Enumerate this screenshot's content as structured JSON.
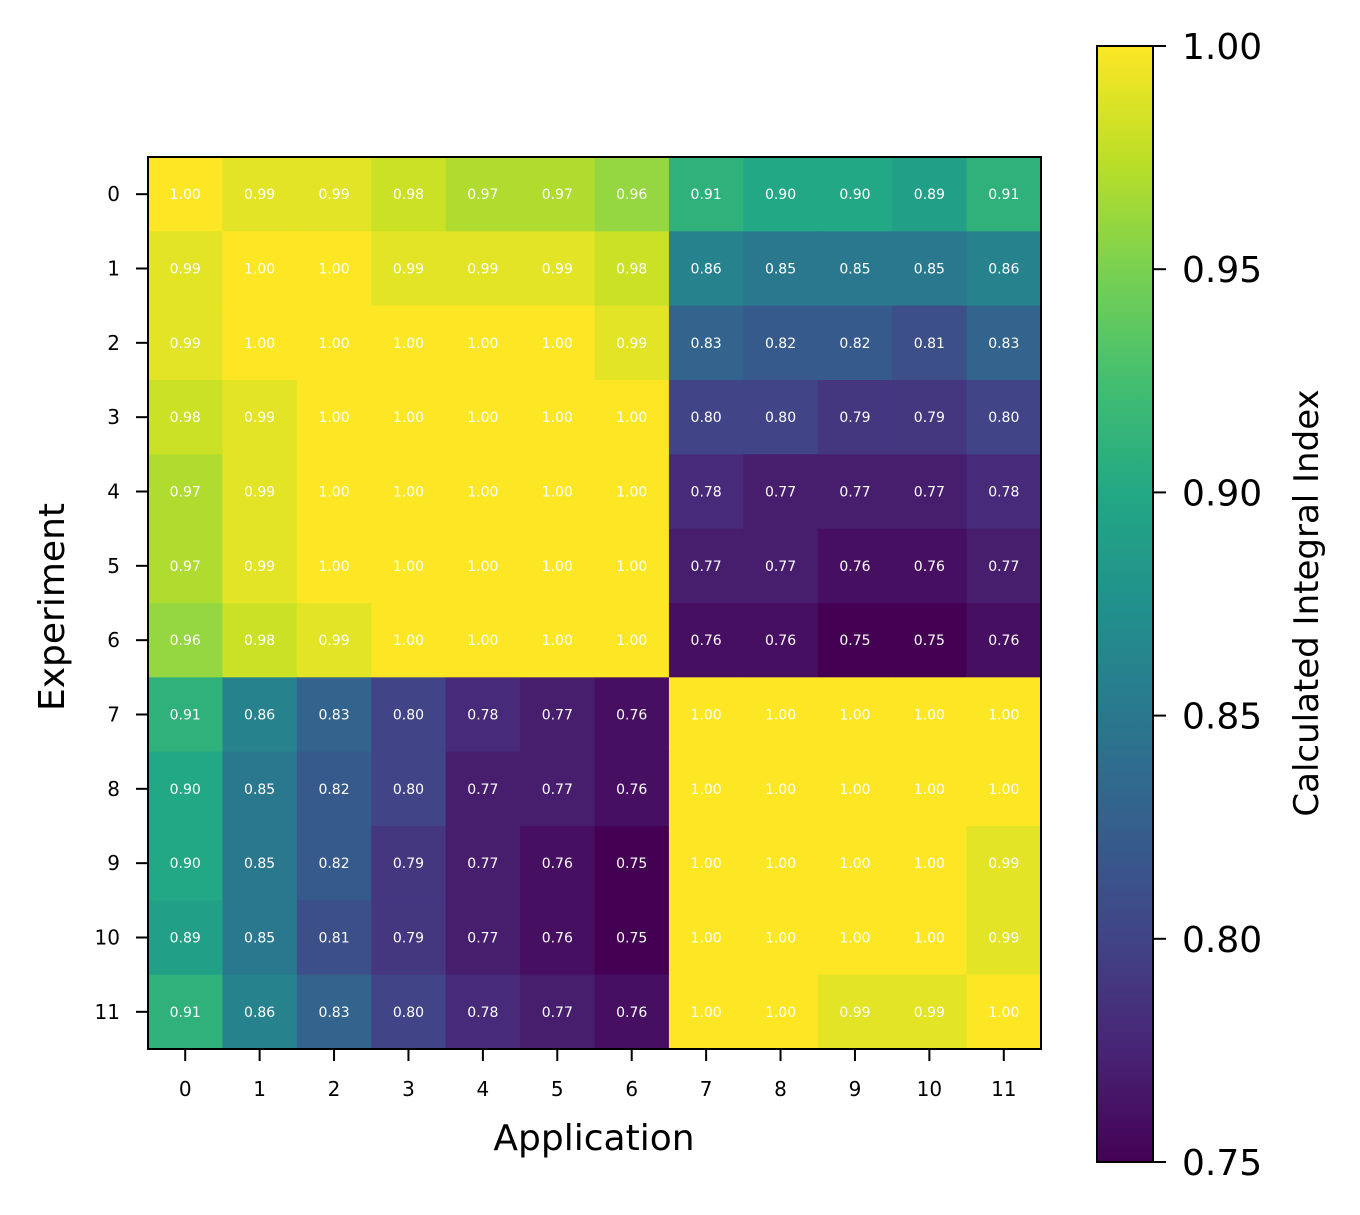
{
  "chart_data": {
    "type": "heatmap",
    "title": "",
    "xlabel": "Application",
    "ylabel": "Experiment",
    "x_categories": [
      "0",
      "1",
      "2",
      "3",
      "4",
      "5",
      "6",
      "7",
      "8",
      "9",
      "10",
      "11"
    ],
    "y_categories": [
      "0",
      "1",
      "2",
      "3",
      "4",
      "5",
      "6",
      "7",
      "8",
      "9",
      "10",
      "11"
    ],
    "values": [
      [
        1.0,
        0.99,
        0.99,
        0.98,
        0.97,
        0.97,
        0.96,
        0.91,
        0.9,
        0.9,
        0.89,
        0.91
      ],
      [
        0.99,
        1.0,
        1.0,
        0.99,
        0.99,
        0.99,
        0.98,
        0.86,
        0.85,
        0.85,
        0.85,
        0.86
      ],
      [
        0.99,
        1.0,
        1.0,
        1.0,
        1.0,
        1.0,
        0.99,
        0.83,
        0.82,
        0.82,
        0.81,
        0.83
      ],
      [
        0.98,
        0.99,
        1.0,
        1.0,
        1.0,
        1.0,
        1.0,
        0.8,
        0.8,
        0.79,
        0.79,
        0.8
      ],
      [
        0.97,
        0.99,
        1.0,
        1.0,
        1.0,
        1.0,
        1.0,
        0.78,
        0.77,
        0.77,
        0.77,
        0.78
      ],
      [
        0.97,
        0.99,
        1.0,
        1.0,
        1.0,
        1.0,
        1.0,
        0.77,
        0.77,
        0.76,
        0.76,
        0.77
      ],
      [
        0.96,
        0.98,
        0.99,
        1.0,
        1.0,
        1.0,
        1.0,
        0.76,
        0.76,
        0.75,
        0.75,
        0.76
      ],
      [
        0.91,
        0.86,
        0.83,
        0.8,
        0.78,
        0.77,
        0.76,
        1.0,
        1.0,
        1.0,
        1.0,
        1.0
      ],
      [
        0.9,
        0.85,
        0.82,
        0.8,
        0.77,
        0.77,
        0.76,
        1.0,
        1.0,
        1.0,
        1.0,
        1.0
      ],
      [
        0.9,
        0.85,
        0.82,
        0.79,
        0.77,
        0.76,
        0.75,
        1.0,
        1.0,
        1.0,
        1.0,
        0.99
      ],
      [
        0.89,
        0.85,
        0.81,
        0.79,
        0.77,
        0.76,
        0.75,
        1.0,
        1.0,
        1.0,
        1.0,
        0.99
      ],
      [
        0.91,
        0.86,
        0.83,
        0.8,
        0.78,
        0.77,
        0.76,
        1.0,
        1.0,
        0.99,
        0.99,
        1.0
      ]
    ],
    "colormap": "viridis",
    "colorbar": {
      "label": "Calculated Integral Index",
      "range": [
        0.75,
        1.0
      ],
      "ticks": [
        "0.75",
        "0.80",
        "0.85",
        "0.90",
        "0.95",
        "1.00"
      ]
    },
    "annotation_color": "#ffffff",
    "grid": false
  }
}
